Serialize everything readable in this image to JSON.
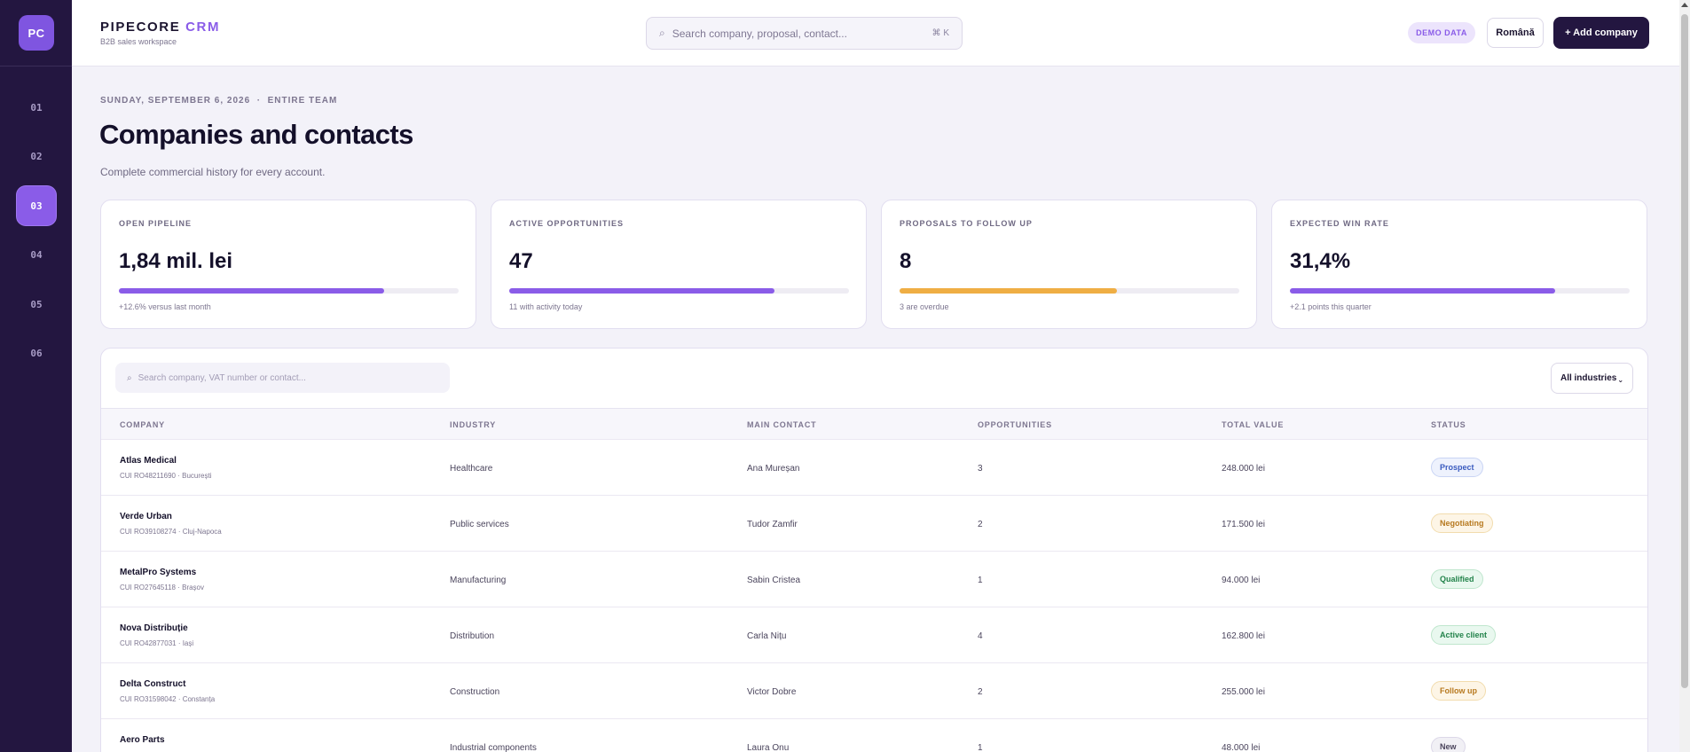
{
  "sidebar": {
    "logo": "PC",
    "items": [
      {
        "label": "01",
        "active": false
      },
      {
        "label": "02",
        "active": false
      },
      {
        "label": "03",
        "active": true
      },
      {
        "label": "04",
        "active": false
      },
      {
        "label": "05",
        "active": false
      },
      {
        "label": "06",
        "active": false
      }
    ]
  },
  "header": {
    "brand_main": "PIPECORE",
    "brand_accent": "CRM",
    "brand_sub": "B2B sales workspace",
    "search_placeholder": "Search company, proposal, contact...",
    "search_shortcut": "⌘ K",
    "demo_badge": "DEMO DATA",
    "language_button": "Română",
    "add_button": "+ Add company"
  },
  "page": {
    "eyebrow": "SUNDAY, SEPTEMBER 6, 2026  ·  ENTIRE TEAM",
    "title": "Companies and contacts",
    "subtitle": "Complete commercial history for every account."
  },
  "kpis": [
    {
      "label": "OPEN PIPELINE",
      "value": "1,84 mil. lei",
      "progress": 0.78,
      "color": "#8a5ce8",
      "note": "+12.6% versus last month"
    },
    {
      "label": "ACTIVE OPPORTUNITIES",
      "value": "47",
      "progress": 0.78,
      "color": "#8a5ce8",
      "note": "11 with activity today"
    },
    {
      "label": "PROPOSALS TO FOLLOW UP",
      "value": "8",
      "progress": 0.64,
      "color": "#efae44",
      "note": "3 are overdue"
    },
    {
      "label": "EXPECTED WIN RATE",
      "value": "31,4%",
      "progress": 0.78,
      "color": "#8a5ce8",
      "note": "+2.1 points this quarter"
    }
  ],
  "table": {
    "search_placeholder": "Search company, VAT number or contact...",
    "industry_filter": "All industries",
    "columns": [
      "COMPANY",
      "INDUSTRY",
      "MAIN CONTACT",
      "OPPORTUNITIES",
      "TOTAL VALUE",
      "STATUS"
    ],
    "rows": [
      {
        "company": "Atlas Medical",
        "meta": "CUI RO48211690 · București",
        "industry": "Healthcare",
        "contact": "Ana Mureșan",
        "opportunities": "3",
        "value": "248.000 lei",
        "status": "Prospect",
        "status_bg": "#eef2fd",
        "status_fg": "#3a5bbf",
        "status_border": "#c9d4f4"
      },
      {
        "company": "Verde Urban",
        "meta": "CUI RO39108274 · Cluj-Napoca",
        "industry": "Public services",
        "contact": "Tudor Zamfir",
        "opportunities": "2",
        "value": "171.500 lei",
        "status": "Negotiating",
        "status_bg": "#fdf5e6",
        "status_fg": "#b7791f",
        "status_border": "#f2dcae"
      },
      {
        "company": "MetalPro Systems",
        "meta": "CUI RO27645118 · Brașov",
        "industry": "Manufacturing",
        "contact": "Sabin Cristea",
        "opportunities": "1",
        "value": "94.000 lei",
        "status": "Qualified",
        "status_bg": "#e9f8ef",
        "status_fg": "#23834b",
        "status_border": "#bfe6cd"
      },
      {
        "company": "Nova Distribuție",
        "meta": "CUI RO42877031 · Iași",
        "industry": "Distribution",
        "contact": "Carla Nițu",
        "opportunities": "4",
        "value": "162.800 lei",
        "status": "Active client",
        "status_bg": "#e9f8ef",
        "status_fg": "#23834b",
        "status_border": "#bfe6cd"
      },
      {
        "company": "Delta Construct",
        "meta": "CUI RO31598042 · Constanța",
        "industry": "Construction",
        "contact": "Victor Dobre",
        "opportunities": "2",
        "value": "255.000 lei",
        "status": "Follow up",
        "status_bg": "#fdf5e6",
        "status_fg": "#b7791f",
        "status_border": "#f2dcae"
      },
      {
        "company": "Aero Parts",
        "meta": "",
        "industry": "Industrial components",
        "contact": "Laura Onu",
        "opportunities": "1",
        "value": "48.000 lei",
        "status": "New",
        "status_bg": "#f1f0f5",
        "status_fg": "#4a445c",
        "status_border": "#dcd8e8"
      }
    ]
  }
}
